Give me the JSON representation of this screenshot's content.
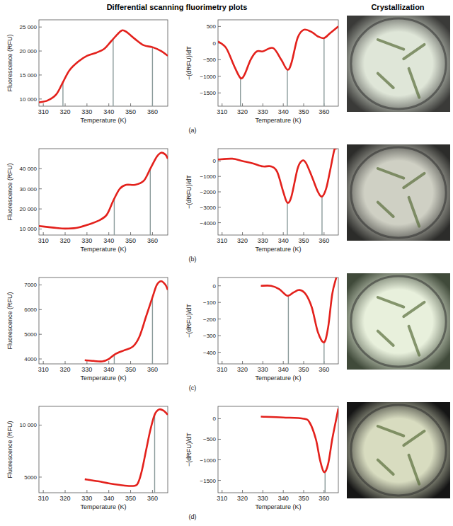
{
  "headers": {
    "plots": "Differential scanning fluorimetry plots",
    "crystallization": "Crystallization"
  },
  "panels": [
    "(a)",
    "(b)",
    "(c)",
    "(d)"
  ],
  "chart_data": [
    {
      "type": "line",
      "color": "#e3211c",
      "x_label": "Temperature (K)",
      "y_label": "Fluorescence (RFU)",
      "x": [
        308,
        312,
        316,
        319,
        322,
        326,
        330,
        334,
        338,
        341,
        344,
        346,
        348,
        352,
        356,
        360,
        364,
        367
      ],
      "values": [
        9300,
        9700,
        11000,
        13500,
        16000,
        17800,
        19000,
        19600,
        20500,
        22000,
        23500,
        24300,
        24000,
        22500,
        21200,
        20800,
        20000,
        19000
      ],
      "xlim": [
        308,
        367
      ],
      "xticks": [
        310,
        320,
        330,
        340,
        350,
        360
      ],
      "ylim": [
        8500,
        26500
      ],
      "yticks": [
        {
          "value": 10000,
          "label": "10 000"
        },
        {
          "value": 15000,
          "label": "15 000"
        },
        {
          "value": 20000,
          "label": "20 000"
        },
        {
          "value": 25000,
          "label": "25 000"
        }
      ],
      "vlines": [
        319,
        342,
        360
      ]
    },
    {
      "type": "line",
      "color": "#e3211c",
      "x_label": "Temperature (K)",
      "y_label": "−(dRFU)/dT",
      "x": [
        308,
        312,
        316,
        319,
        321,
        324,
        327,
        330,
        335,
        339,
        342,
        344,
        347,
        350,
        354,
        357,
        360,
        363,
        367
      ],
      "values": [
        50,
        -150,
        -700,
        -1050,
        -950,
        -500,
        -250,
        -250,
        -150,
        -500,
        -800,
        -600,
        150,
        400,
        330,
        200,
        150,
        300,
        500
      ],
      "xlim": [
        308,
        367
      ],
      "xticks": [
        310,
        320,
        330,
        340,
        350,
        360
      ],
      "ylim": [
        -1900,
        700
      ],
      "yticks": [
        {
          "value": -1500,
          "label": "−1500"
        },
        {
          "value": -1000,
          "label": "−1000"
        },
        {
          "value": -500,
          "label": "−500"
        },
        0,
        500
      ],
      "vlines": [
        319,
        342,
        360
      ]
    },
    {
      "type": "line",
      "color": "#e3211c",
      "x_label": "Temperature (K)",
      "y_label": "Fluorescence (RFU)",
      "x": [
        308,
        312,
        316,
        320,
        325,
        330,
        335,
        339,
        342,
        345,
        348,
        352,
        356,
        359,
        362,
        364,
        366,
        367
      ],
      "values": [
        11500,
        11000,
        10500,
        10200,
        10500,
        12000,
        14000,
        17000,
        24000,
        30000,
        32000,
        32000,
        34000,
        40000,
        46000,
        48000,
        47000,
        45000
      ],
      "xlim": [
        308,
        367
      ],
      "xticks": [
        310,
        320,
        330,
        340,
        350,
        360
      ],
      "ylim": [
        7000,
        50000
      ],
      "yticks": [
        {
          "value": 10000,
          "label": "10 000"
        },
        {
          "value": 20000,
          "label": "20 000"
        },
        {
          "value": 30000,
          "label": "30 000"
        },
        {
          "value": 40000,
          "label": "40 000"
        }
      ],
      "vlines": [
        342.5,
        359
      ]
    },
    {
      "type": "line",
      "color": "#e3211c",
      "x_label": "Temperature (K)",
      "y_label": "−(dRFU)/dT",
      "x": [
        308,
        315,
        320,
        325,
        330,
        334,
        337,
        340,
        342,
        344,
        347,
        349,
        351,
        354,
        357,
        359,
        361,
        363,
        365,
        366
      ],
      "values": [
        100,
        150,
        0,
        -150,
        -350,
        -350,
        -700,
        -2000,
        -2700,
        -2300,
        -500,
        0,
        -100,
        -1000,
        -2000,
        -2300,
        -1800,
        -600,
        700,
        800
      ],
      "xlim": [
        308,
        367
      ],
      "xticks": [
        310,
        320,
        330,
        340,
        350,
        360
      ],
      "ylim": [
        -4800,
        800
      ],
      "yticks": [
        {
          "value": -4000,
          "label": "−4000"
        },
        {
          "value": -3000,
          "label": "−3000"
        },
        {
          "value": -2000,
          "label": "−2000"
        },
        {
          "value": -1000,
          "label": "−1000"
        },
        0
      ],
      "vlines": [
        342,
        359
      ]
    },
    {
      "type": "line",
      "color": "#e3211c",
      "x_label": "Temperature (K)",
      "y_label": "Fluorescence (RFU)",
      "x": [
        329,
        333,
        337,
        340,
        343,
        347,
        351,
        354,
        357,
        360,
        362,
        364,
        366,
        367
      ],
      "values": [
        3950,
        3920,
        3900,
        4000,
        4200,
        4350,
        4500,
        4900,
        5700,
        6500,
        7000,
        7150,
        7000,
        6800
      ],
      "xlim": [
        308,
        367
      ],
      "xticks": [
        310,
        320,
        330,
        340,
        350,
        360
      ],
      "ylim": [
        3800,
        7300
      ],
      "yticks": [
        4000,
        5000,
        6000,
        7000
      ],
      "vlines": [
        342.5,
        360
      ]
    },
    {
      "type": "line",
      "color": "#e3211c",
      "x_label": "Temperature (K)",
      "y_label": "−(dRFU)/dT",
      "x": [
        329,
        334,
        338,
        342,
        345,
        348,
        351,
        354,
        357,
        360,
        362,
        364,
        366
      ],
      "values": [
        0,
        0,
        -20,
        -60,
        -40,
        -25,
        -50,
        -130,
        -280,
        -340,
        -250,
        -50,
        50
      ],
      "xlim": [
        308,
        367
      ],
      "xticks": [
        310,
        320,
        330,
        340,
        350,
        360
      ],
      "ylim": [
        -470,
        50
      ],
      "yticks": [
        {
          "value": -400,
          "label": "−400"
        },
        {
          "value": -300,
          "label": "−300"
        },
        {
          "value": -200,
          "label": "−200"
        },
        {
          "value": -100,
          "label": "−100"
        },
        0
      ],
      "vlines": [
        342.5,
        360
      ]
    },
    {
      "type": "line",
      "color": "#e3211c",
      "x_label": "Temperature (K)",
      "y_label": "Fluorescence (RFU)",
      "x": [
        329,
        335,
        340,
        345,
        350,
        353,
        355,
        357,
        359,
        361,
        363,
        365,
        367
      ],
      "values": [
        4800,
        4600,
        4400,
        4250,
        4150,
        4300,
        5500,
        7500,
        9500,
        11000,
        11500,
        11400,
        11000
      ],
      "xlim": [
        308,
        367
      ],
      "xticks": [
        310,
        320,
        330,
        340,
        350,
        360
      ],
      "ylim": [
        3500,
        11800
      ],
      "yticks": [
        5000,
        {
          "value": 10000,
          "label": "10 000"
        }
      ],
      "vlines": [
        361
      ]
    },
    {
      "type": "line",
      "color": "#e3211c",
      "x_label": "Temperature (K)",
      "y_label": "−(dRFU)/dT",
      "x": [
        329,
        340,
        350,
        353,
        356,
        358,
        360,
        362,
        364,
        366,
        367
      ],
      "values": [
        50,
        30,
        0,
        -100,
        -500,
        -1000,
        -1300,
        -1100,
        -500,
        0,
        250
      ],
      "xlim": [
        308,
        367
      ],
      "xticks": [
        310,
        320,
        330,
        340,
        350,
        360
      ],
      "ylim": [
        -1800,
        300
      ],
      "yticks": [
        {
          "value": -1500,
          "label": "−1500"
        },
        {
          "value": -1000,
          "label": "−1000"
        },
        {
          "value": -500,
          "label": "−500"
        },
        0
      ],
      "vlines": [
        360.5
      ]
    }
  ]
}
